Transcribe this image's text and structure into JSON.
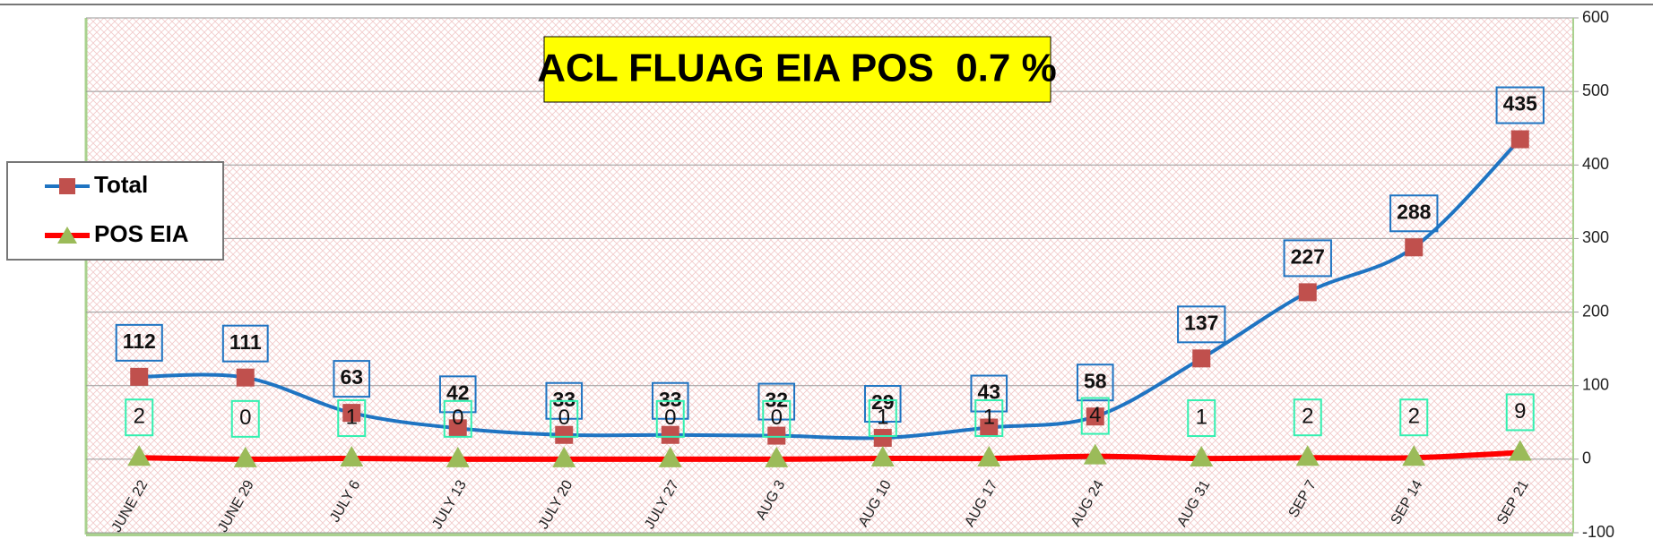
{
  "chart_data": {
    "type": "line",
    "title": "ACL FLUAG EIA POS  0.7 %",
    "categories": [
      "JUNE 22",
      "JUNE 29",
      "JULY 6",
      "JULY 13",
      "JULY 20",
      "JULY 27",
      "AUG 3",
      "AUG 10",
      "AUG 17",
      "AUG 24",
      "AUG 31",
      "SEP 7",
      "SEP 14",
      "SEP 21"
    ],
    "series": [
      {
        "name": "Total",
        "color": "#1f74c2",
        "marker_color": "#c0504d",
        "marker": "square",
        "values": [
          112,
          111,
          63,
          42,
          33,
          33,
          32,
          29,
          43,
          58,
          137,
          227,
          288,
          435
        ]
      },
      {
        "name": "POS EIA",
        "color": "#ff0000",
        "marker_color": "#9bbb59",
        "marker": "triangle",
        "values": [
          2,
          0,
          1,
          0,
          0,
          0,
          0,
          1,
          1,
          4,
          1,
          2,
          2,
          9
        ]
      }
    ],
    "ylim": [
      -100,
      600
    ],
    "yticks": [
      -100,
      0,
      100,
      200,
      300,
      400,
      500,
      600
    ],
    "grid": true,
    "legend": "left"
  }
}
